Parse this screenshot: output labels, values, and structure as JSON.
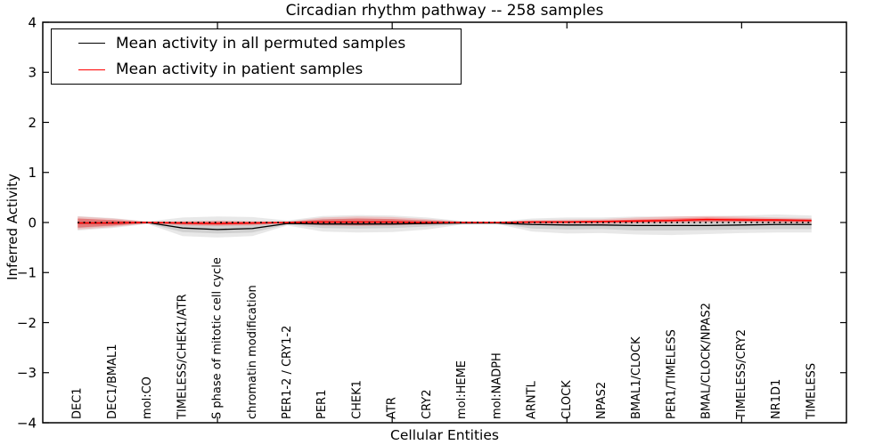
{
  "figure": {
    "title": "Circadian rhythm pathway -- 258 samples",
    "xlabel": "Cellular Entities",
    "ylabel": "Inferred Activity"
  },
  "chart_data": {
    "type": "line",
    "title": "Circadian rhythm pathway -- 258 samples",
    "xlabel": "Cellular Entities",
    "ylabel": "Inferred Activity",
    "ylim": [
      -4,
      4
    ],
    "xlim": [
      0,
      23
    ],
    "grid": false,
    "legend_position": "upper left",
    "ytick_values": [
      -4,
      -3,
      -2,
      -1,
      0,
      1,
      2,
      3,
      4
    ],
    "ytick_labels": [
      "−4",
      "−3",
      "−2",
      "−1",
      "0",
      "1",
      "2",
      "3",
      "4"
    ],
    "xtick_values": [
      5,
      10,
      15,
      20
    ],
    "categories": [
      "DEC1",
      "DEC1/BMAL1",
      "mol:CO",
      "TIMELESS/CHEK1/ATR",
      "S phase of mitotic cell cycle",
      "chromatin modification",
      "PER1-2 / CRY1-2",
      "PER1",
      "CHEK1",
      "ATR",
      "CRY2",
      "mol:HEME",
      "mol:NADPH",
      "ARNTL",
      "CLOCK",
      "NPAS2",
      "BMAL1/CLOCK",
      "PER1/TIMELESS",
      "BMAL/CLOCK/NPAS2",
      "TIMELESS/CRY2",
      "NR1D1",
      "TIMELESS"
    ],
    "series": [
      {
        "name": "Mean activity in all permuted samples",
        "color": "#000000",
        "style": "solid",
        "width": 1.3,
        "values": [
          -0.01,
          -0.01,
          0,
          -0.11,
          -0.14,
          -0.12,
          -0.02,
          -0.03,
          -0.03,
          -0.03,
          -0.02,
          -0.01,
          -0.01,
          -0.04,
          -0.05,
          -0.05,
          -0.06,
          -0.06,
          -0.06,
          -0.05,
          -0.04,
          -0.04
        ]
      },
      {
        "name": "Mean activity in patient samples",
        "color": "#ff0000",
        "style": "solid",
        "width": 1.6,
        "values": [
          -0.01,
          -0.01,
          0,
          -0.01,
          -0.02,
          -0.01,
          0,
          0.01,
          0.01,
          0.01,
          0,
          0,
          0,
          0.01,
          0.01,
          0.02,
          0.03,
          0.04,
          0.06,
          0.05,
          0.05,
          0.04
        ]
      },
      {
        "name": "zero-reference",
        "color": "#000000",
        "style": "dotted",
        "width": 1.8,
        "values": [
          0,
          0,
          0,
          0,
          0,
          0,
          0,
          0,
          0,
          0,
          0,
          0,
          0,
          0,
          0,
          0,
          0,
          0,
          0,
          0,
          0,
          0
        ]
      }
    ],
    "bands": [
      {
        "name": "permuted-band-outer",
        "color": "rgba(0,0,0,0.09)",
        "upper": [
          0.13,
          0.09,
          0.02,
          0.1,
          0.12,
          0.11,
          0.04,
          0.13,
          0.15,
          0.14,
          0.1,
          0.03,
          0.02,
          0.08,
          0.1,
          0.1,
          0.12,
          0.12,
          0.13,
          0.14,
          0.16,
          0.14
        ],
        "lower": [
          -0.16,
          -0.11,
          -0.03,
          -0.27,
          -0.3,
          -0.27,
          -0.06,
          -0.18,
          -0.2,
          -0.19,
          -0.14,
          -0.04,
          -0.03,
          -0.18,
          -0.22,
          -0.21,
          -0.24,
          -0.25,
          -0.23,
          -0.21,
          -0.2,
          -0.2
        ]
      },
      {
        "name": "permuted-band-inner",
        "color": "rgba(0,0,0,0.10)",
        "upper": [
          0.08,
          0.05,
          0.01,
          0.02,
          0.03,
          0.02,
          0.02,
          0.07,
          0.08,
          0.07,
          0.05,
          0.02,
          0.01,
          0.03,
          0.04,
          0.04,
          0.05,
          0.05,
          0.06,
          0.07,
          0.08,
          0.07
        ],
        "lower": [
          -0.11,
          -0.07,
          -0.02,
          -0.19,
          -0.22,
          -0.2,
          -0.04,
          -0.11,
          -0.12,
          -0.11,
          -0.08,
          -0.03,
          -0.02,
          -0.12,
          -0.14,
          -0.13,
          -0.16,
          -0.16,
          -0.15,
          -0.14,
          -0.13,
          -0.13
        ]
      },
      {
        "name": "patient-band-outer",
        "color": "rgba(255,0,0,0.16)",
        "upper": [
          0.12,
          0.08,
          0.02,
          0.03,
          0.04,
          0.03,
          0.02,
          0.1,
          0.12,
          0.11,
          0.07,
          0.02,
          0.01,
          0.05,
          0.06,
          0.07,
          0.1,
          0.12,
          0.13,
          0.12,
          0.1,
          0.09
        ],
        "lower": [
          -0.14,
          -0.09,
          -0.02,
          -0.06,
          -0.07,
          -0.06,
          -0.02,
          -0.06,
          -0.07,
          -0.06,
          -0.04,
          -0.02,
          -0.01,
          -0.03,
          -0.03,
          -0.03,
          -0.02,
          -0.01,
          0,
          0,
          -0.01,
          -0.01
        ]
      },
      {
        "name": "patient-band-inner",
        "color": "rgba(255,0,0,0.30)",
        "upper": [
          0.08,
          0.05,
          0.01,
          0.01,
          0.02,
          0.01,
          0.01,
          0.06,
          0.08,
          0.07,
          0.04,
          0.01,
          0.01,
          0.03,
          0.03,
          0.04,
          0.06,
          0.08,
          0.1,
          0.09,
          0.07,
          0.06
        ],
        "lower": [
          -0.1,
          -0.06,
          -0.01,
          -0.04,
          -0.05,
          -0.04,
          -0.01,
          -0.04,
          -0.05,
          -0.04,
          -0.03,
          -0.01,
          -0.01,
          -0.01,
          -0.01,
          -0.01,
          0,
          0.01,
          0.02,
          0.02,
          0.01,
          0.01
        ]
      }
    ]
  }
}
